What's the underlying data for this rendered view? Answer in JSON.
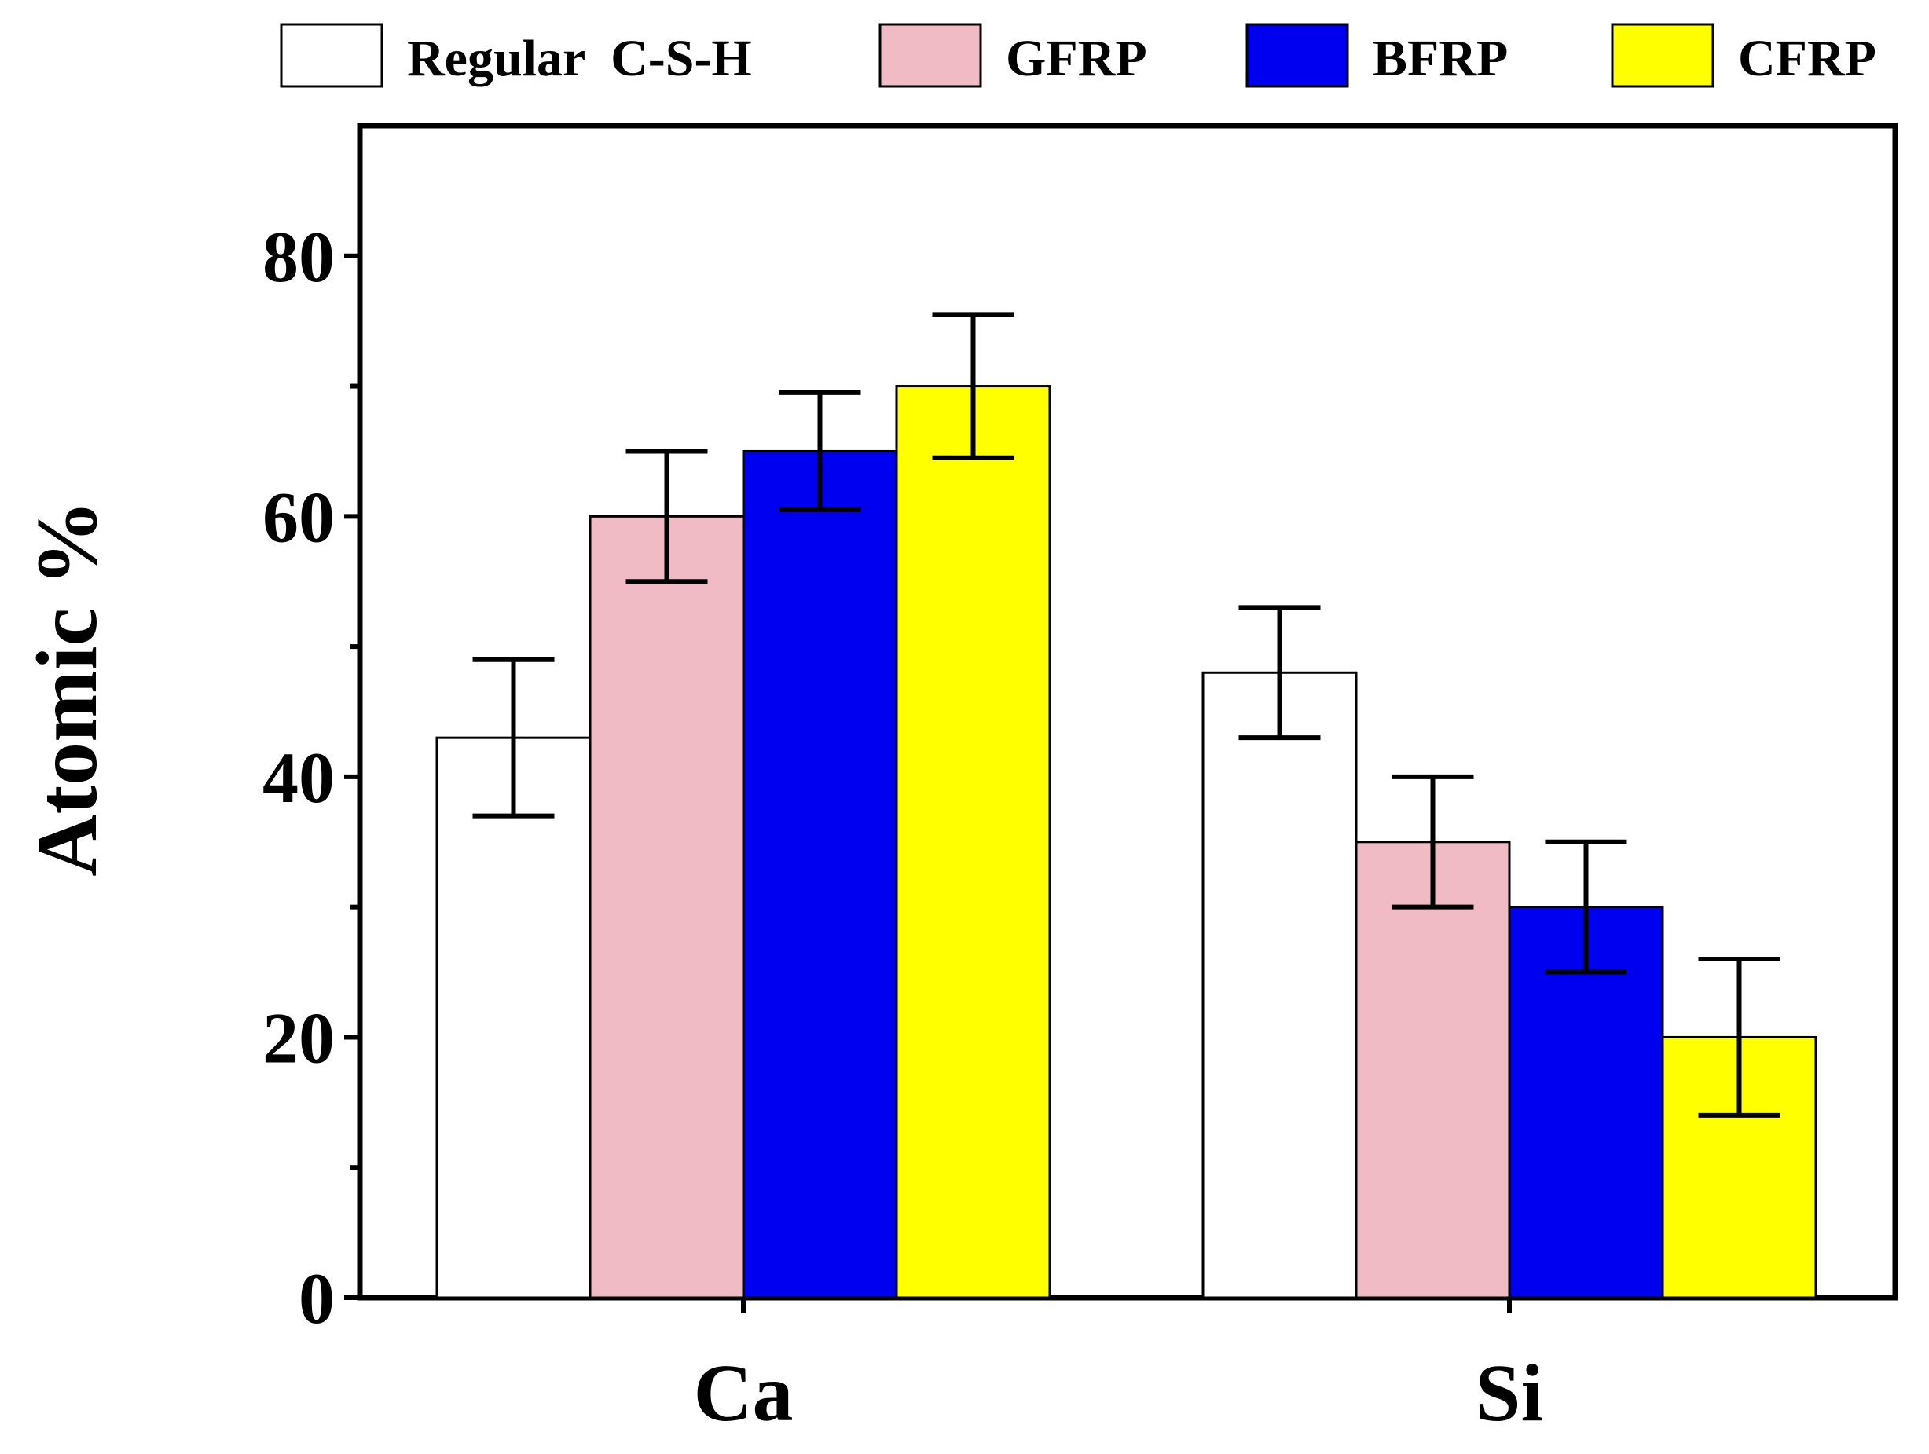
{
  "chart_data": {
    "type": "bar",
    "title": "",
    "xlabel": "",
    "ylabel": "Atomic %",
    "ylim": [
      0,
      90
    ],
    "yticks": [
      0,
      20,
      40,
      60,
      80
    ],
    "yticks_minor": [
      10,
      30,
      50,
      70
    ],
    "categories": [
      "Ca",
      "Si"
    ],
    "legend_position": "top",
    "series": [
      {
        "name": "Regular  C-S-H",
        "color": "#ffffff",
        "values": [
          43,
          48
        ],
        "errors": [
          6,
          5
        ]
      },
      {
        "name": "GFRP",
        "color": "#f0bbc5",
        "values": [
          60,
          35
        ],
        "errors": [
          5,
          5
        ]
      },
      {
        "name": "BFRP",
        "color": "#0000f0",
        "values": [
          65,
          30
        ],
        "errors": [
          4.5,
          5
        ]
      },
      {
        "name": "CFRP",
        "color": "#ffff00",
        "values": [
          70,
          20
        ],
        "errors": [
          5.5,
          6
        ]
      }
    ]
  }
}
